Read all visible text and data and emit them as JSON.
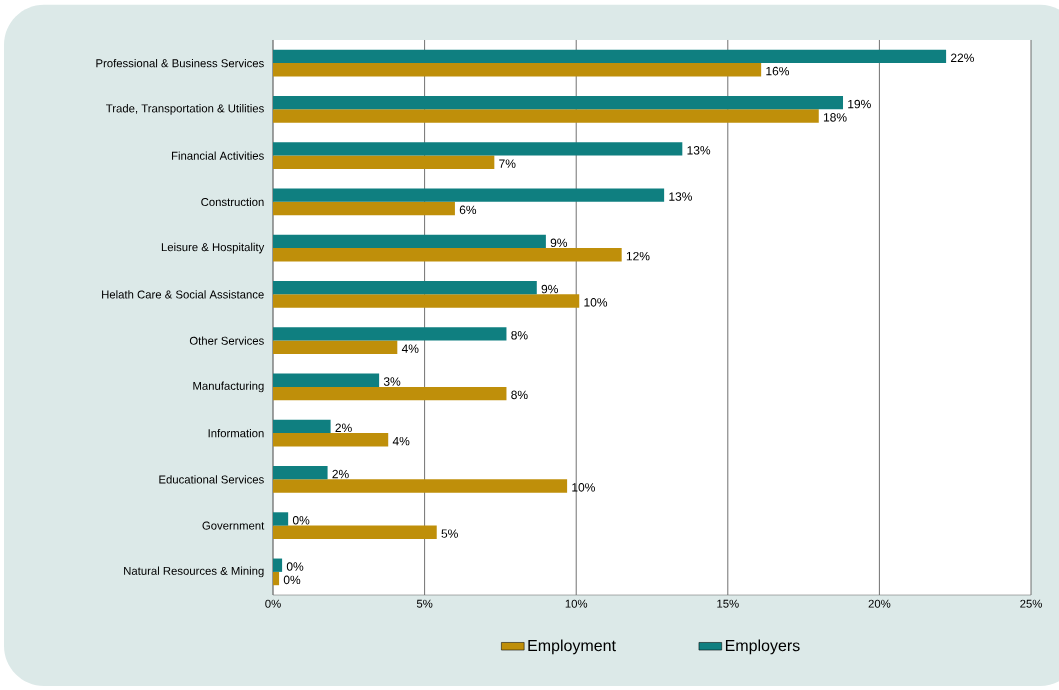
{
  "chart_data": {
    "type": "bar",
    "orientation": "horizontal",
    "categories": [
      "Professional & Business Services",
      "Trade, Transportation & Utilities",
      "Financial Activities",
      "Construction",
      "Leisure & Hospitality",
      "Helath Care & Social Assistance",
      "Other Services",
      "Manufacturing",
      "Information",
      "Educational Services",
      "Government",
      "Natural Resources & Mining"
    ],
    "series": [
      {
        "name": "Employment",
        "color": "#bf8f0a",
        "values": [
          16.1,
          18.0,
          7.3,
          6.0,
          11.5,
          10.1,
          4.1,
          7.7,
          3.8,
          9.7,
          5.4,
          0.2
        ],
        "value_labels": [
          "16%",
          "18%",
          "7%",
          "6%",
          "12%",
          "10%",
          "4%",
          "8%",
          "4%",
          "10%",
          "5%",
          "0%"
        ]
      },
      {
        "name": "Employers",
        "color": "#0f7f80",
        "values": [
          22.2,
          18.8,
          13.5,
          12.9,
          9.0,
          8.7,
          7.7,
          3.5,
          1.9,
          1.8,
          0.5,
          0.3
        ],
        "value_labels": [
          "22%",
          "19%",
          "13%",
          "13%",
          "9%",
          "9%",
          "8%",
          "3%",
          "2%",
          "2%",
          "0%",
          "0%"
        ]
      }
    ],
    "xlim": [
      0,
      25
    ],
    "xticks": [
      {
        "value": 0,
        "label": "0%"
      },
      {
        "value": 5,
        "label": "5%"
      },
      {
        "value": 10,
        "label": "10%"
      },
      {
        "value": 15,
        "label": "15%"
      },
      {
        "value": 20,
        "label": "20%"
      },
      {
        "value": 25,
        "label": "25%"
      }
    ],
    "grid": "x",
    "legend": "bottom"
  }
}
